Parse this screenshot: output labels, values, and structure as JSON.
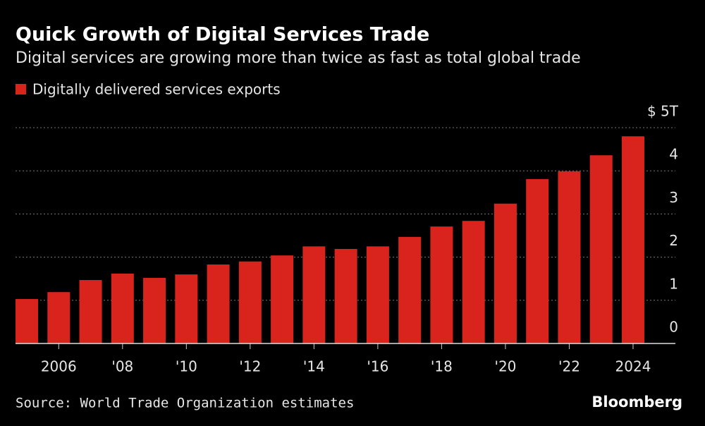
{
  "chart_data": {
    "type": "bar",
    "title": "Quick Growth of Digital Services Trade",
    "subtitle": "Digital services are growing more than twice as fast as total global trade",
    "categories": [
      null,
      "2006",
      null,
      "'08",
      null,
      "'10",
      null,
      "'12",
      null,
      "'14",
      null,
      "'16",
      null,
      "'18",
      null,
      "'20",
      null,
      "'22",
      null,
      "2024"
    ],
    "series": [
      {
        "name": "Digitally delivered services exports",
        "color": "#d9231d",
        "values": [
          1.03,
          1.19,
          1.47,
          1.62,
          1.52,
          1.6,
          1.83,
          1.9,
          2.04,
          2.25,
          2.19,
          2.25,
          2.47,
          2.71,
          2.84,
          3.24,
          3.81,
          3.99,
          4.36,
          4.8
        ]
      }
    ],
    "ylim": [
      0,
      5
    ],
    "yticks": [
      0,
      1,
      2,
      3,
      4,
      {
        "value": 5,
        "label": "$ 5T"
      }
    ],
    "grid": true,
    "source": "Source: World Trade Organization estimates",
    "brand": "Bloomberg"
  }
}
